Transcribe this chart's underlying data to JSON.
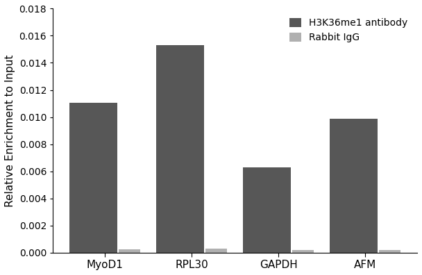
{
  "categories": [
    "MyoD1",
    "RPL30",
    "GAPDH",
    "AFM"
  ],
  "antibody_values": [
    0.01105,
    0.0153,
    0.0063,
    0.00985
  ],
  "igg_values": [
    0.00025,
    0.00028,
    0.00018,
    0.0002
  ],
  "antibody_color": "#575757",
  "igg_color": "#b0b0b0",
  "ylabel": "Relative Enrichment to Input",
  "ylim": [
    0,
    0.018
  ],
  "yticks": [
    0.0,
    0.002,
    0.004,
    0.006,
    0.008,
    0.01,
    0.012,
    0.014,
    0.016,
    0.018
  ],
  "legend_labels": [
    "H3K36me1 antibody",
    "Rabbit IgG"
  ],
  "antibody_bar_width": 0.55,
  "igg_bar_width": 0.25,
  "background_color": "#ffffff"
}
